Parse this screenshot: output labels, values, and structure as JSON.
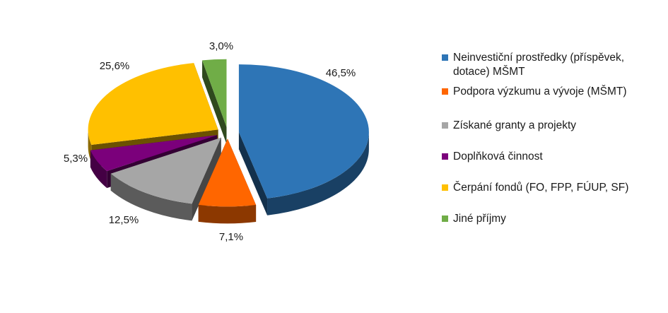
{
  "chart_data": {
    "type": "pie",
    "style": "3d-exploded",
    "legend_position": "right",
    "categories": [
      "Neinvestiční prostředky (příspěvek, dotace) MŠMT",
      "Podpora výzkumu a vývoje (MŠMT)",
      "Získané granty a projekty",
      "Doplňková činnost",
      "Čerpání fondů (FO, FPP, FÚUP, SF)",
      "Jiné příjmy"
    ],
    "values": [
      46.5,
      7.1,
      12.5,
      5.3,
      25.6,
      3.0
    ],
    "value_labels": [
      "46,5%",
      "7,1%",
      "12,5%",
      "5,3%",
      "25,6%",
      "3,0%"
    ],
    "colors": [
      "#2E75B6",
      "#FF6600",
      "#A6A6A6",
      "#7B007B",
      "#FFC000",
      "#70AD47"
    ]
  }
}
